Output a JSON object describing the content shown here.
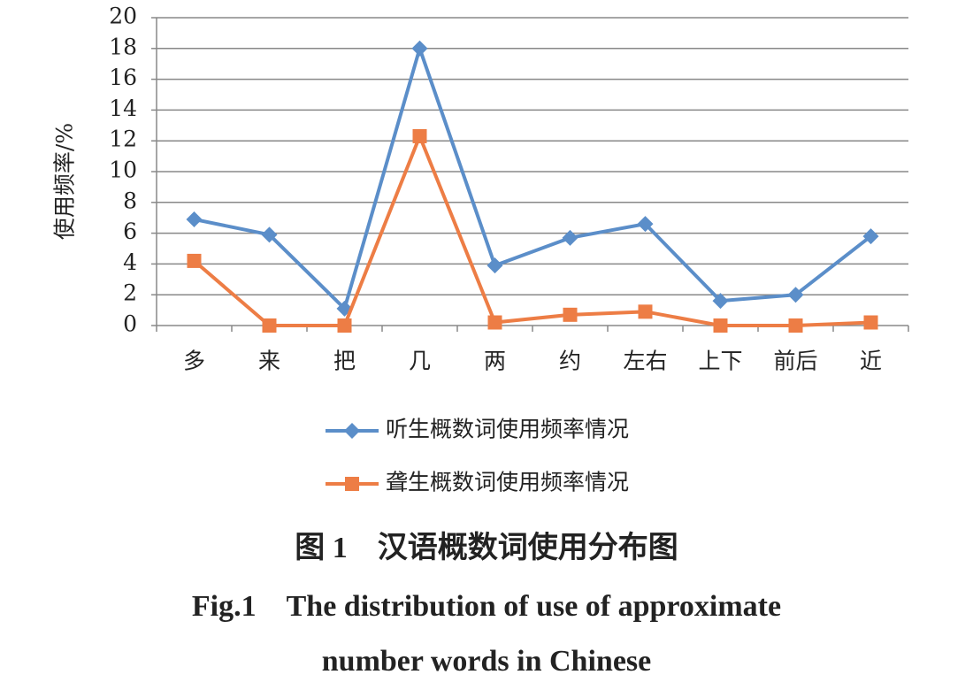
{
  "chart_data": {
    "type": "line",
    "y_label": "使用频率/%",
    "categories": [
      "多",
      "来",
      "把",
      "几",
      "两",
      "约",
      "左右",
      "上下",
      "前后",
      "近"
    ],
    "series": [
      {
        "name": "听生概数词使用频率情况",
        "color": "#5b8ec9",
        "marker": "diamond",
        "values": [
          6.9,
          5.9,
          1.1,
          18,
          3.9,
          5.7,
          6.6,
          1.6,
          2.0,
          5.8
        ]
      },
      {
        "name": "聋生概数词使用频率情况",
        "color": "#ed7d45",
        "marker": "square",
        "values": [
          4.2,
          0,
          0,
          12.3,
          0.2,
          0.7,
          0.9,
          0,
          0,
          0.2
        ]
      }
    ],
    "ylim": [
      0,
      20
    ],
    "yticks": [
      0,
      2,
      4,
      6,
      8,
      10,
      12,
      14,
      16,
      18,
      20
    ],
    "grid": true,
    "caption_cn": "图 1　汉语概数词使用分布图",
    "caption_en": [
      "Fig.1　The distribution of use of approximate",
      "number words in Chinese"
    ]
  }
}
